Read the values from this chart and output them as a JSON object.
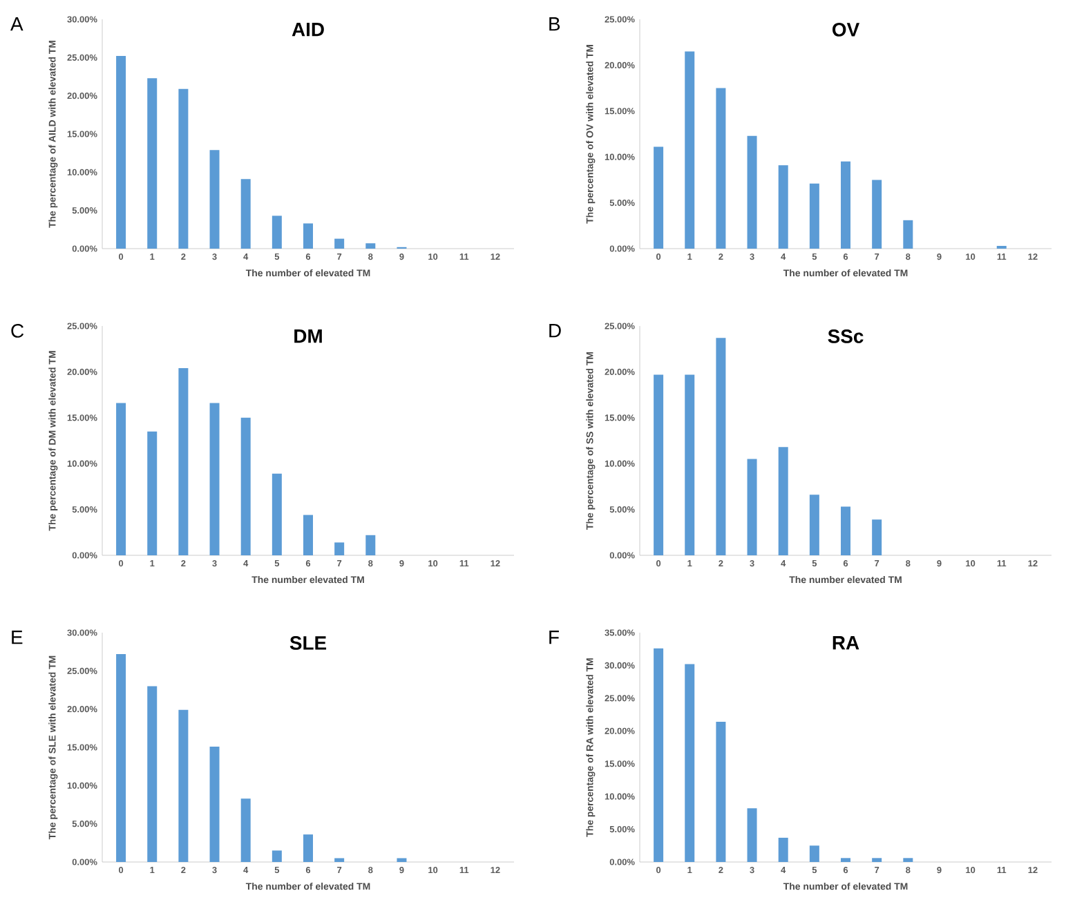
{
  "chart_data": [
    {
      "type": "bar",
      "title": "AID",
      "xlabel": "The number of elevated TM",
      "ylabel": "The percentage of AILD with elevated TM",
      "annotations": [
        "A"
      ],
      "categories": [
        "0",
        "1",
        "2",
        "3",
        "4",
        "5",
        "6",
        "7",
        "8",
        "9",
        "10",
        "11",
        "12"
      ],
      "values": [
        25.2,
        22.3,
        20.9,
        12.9,
        9.1,
        4.3,
        3.3,
        1.3,
        0.7,
        0.2,
        0,
        0,
        0
      ],
      "color": "#5b9bd5",
      "ylim": [
        0,
        30
      ],
      "yticks": [
        {
          "value": 0,
          "label": "0.00%"
        },
        {
          "value": 5,
          "label": "5.00%"
        },
        {
          "value": 10,
          "label": "10.00%"
        },
        {
          "value": 15,
          "label": "15.00%"
        },
        {
          "value": 20,
          "label": "20.00%"
        },
        {
          "value": 25,
          "label": "25.00%"
        },
        {
          "value": 30,
          "label": "30.00%"
        }
      ]
    },
    {
      "type": "bar",
      "title": "OV",
      "xlabel": "The number of elevated TM",
      "ylabel": "The percentage of OV with elevated TM",
      "annotations": [
        "B"
      ],
      "categories": [
        "0",
        "1",
        "2",
        "3",
        "4",
        "5",
        "6",
        "7",
        "8",
        "9",
        "10",
        "11",
        "12"
      ],
      "values": [
        11.1,
        21.5,
        17.5,
        12.3,
        9.1,
        7.1,
        9.5,
        7.5,
        3.1,
        0,
        0,
        0.3,
        0
      ],
      "color": "#5b9bd5",
      "ylim": [
        0,
        25
      ],
      "yticks": [
        {
          "value": 0,
          "label": "0.00%"
        },
        {
          "value": 5,
          "label": "5.00%"
        },
        {
          "value": 10,
          "label": "10.00%"
        },
        {
          "value": 15,
          "label": "15.00%"
        },
        {
          "value": 20,
          "label": "20.00%"
        },
        {
          "value": 25,
          "label": "25.00%"
        }
      ]
    },
    {
      "type": "bar",
      "title": "DM",
      "xlabel": "The number elevated TM",
      "ylabel": "The percentage of DM with elevated TM",
      "annotations": [
        "C"
      ],
      "categories": [
        "0",
        "1",
        "2",
        "3",
        "4",
        "5",
        "6",
        "7",
        "8",
        "9",
        "10",
        "11",
        "12"
      ],
      "values": [
        16.6,
        13.5,
        20.4,
        16.6,
        15.0,
        8.9,
        4.4,
        1.4,
        2.2,
        0,
        0,
        0,
        0
      ],
      "color": "#5b9bd5",
      "ylim": [
        0,
        25
      ],
      "yticks": [
        {
          "value": 0,
          "label": "0.00%"
        },
        {
          "value": 5,
          "label": "5.00%"
        },
        {
          "value": 10,
          "label": "10.00%"
        },
        {
          "value": 15,
          "label": "15.00%"
        },
        {
          "value": 20,
          "label": "20.00%"
        },
        {
          "value": 25,
          "label": "25.00%"
        }
      ]
    },
    {
      "type": "bar",
      "title": "SSc",
      "xlabel": "The number elevated TM",
      "ylabel": "The percentage of SS with elevated TM",
      "annotations": [
        "D"
      ],
      "categories": [
        "0",
        "1",
        "2",
        "3",
        "4",
        "5",
        "6",
        "7",
        "8",
        "9",
        "10",
        "11",
        "12"
      ],
      "values": [
        19.7,
        19.7,
        23.7,
        10.5,
        11.8,
        6.6,
        5.3,
        3.9,
        0,
        0,
        0,
        0,
        0
      ],
      "color": "#5b9bd5",
      "ylim": [
        0,
        25
      ],
      "yticks": [
        {
          "value": 0,
          "label": "0.00%"
        },
        {
          "value": 5,
          "label": "5.00%"
        },
        {
          "value": 10,
          "label": "10.00%"
        },
        {
          "value": 15,
          "label": "15.00%"
        },
        {
          "value": 20,
          "label": "20.00%"
        },
        {
          "value": 25,
          "label": "25.00%"
        }
      ]
    },
    {
      "type": "bar",
      "title": "SLE",
      "xlabel": "The number of elevated TM",
      "ylabel": "The percentage of SLE with elevated TM",
      "annotations": [
        "E"
      ],
      "categories": [
        "0",
        "1",
        "2",
        "3",
        "4",
        "5",
        "6",
        "7",
        "8",
        "9",
        "10",
        "11",
        "12"
      ],
      "values": [
        27.2,
        23.0,
        19.9,
        15.1,
        8.3,
        1.5,
        3.6,
        0.5,
        0,
        0.5,
        0,
        0,
        0
      ],
      "color": "#5b9bd5",
      "ylim": [
        0,
        30
      ],
      "yticks": [
        {
          "value": 0,
          "label": "0.00%"
        },
        {
          "value": 5,
          "label": "5.00%"
        },
        {
          "value": 10,
          "label": "10.00%"
        },
        {
          "value": 15,
          "label": "15.00%"
        },
        {
          "value": 20,
          "label": "20.00%"
        },
        {
          "value": 25,
          "label": "25.00%"
        },
        {
          "value": 30,
          "label": "30.00%"
        }
      ]
    },
    {
      "type": "bar",
      "title": "RA",
      "xlabel": "The number of elevated TM",
      "ylabel": "The percentage of RA with elevated TM",
      "annotations": [
        "F"
      ],
      "categories": [
        "0",
        "1",
        "2",
        "3",
        "4",
        "5",
        "6",
        "7",
        "8",
        "9",
        "10",
        "11",
        "12"
      ],
      "values": [
        32.6,
        30.2,
        21.4,
        8.2,
        3.7,
        2.5,
        0.6,
        0.6,
        0.6,
        0,
        0,
        0,
        0
      ],
      "color": "#5b9bd5",
      "ylim": [
        0,
        35
      ],
      "yticks": [
        {
          "value": 0,
          "label": "0.00%"
        },
        {
          "value": 5,
          "label": "5.00%"
        },
        {
          "value": 10,
          "label": "10.00%"
        },
        {
          "value": 15,
          "label": "15.00%"
        },
        {
          "value": 20,
          "label": "20.00%"
        },
        {
          "value": 25,
          "label": "25.00%"
        },
        {
          "value": 30,
          "label": "30.00%"
        },
        {
          "value": 35,
          "label": "35.00%"
        }
      ]
    }
  ]
}
